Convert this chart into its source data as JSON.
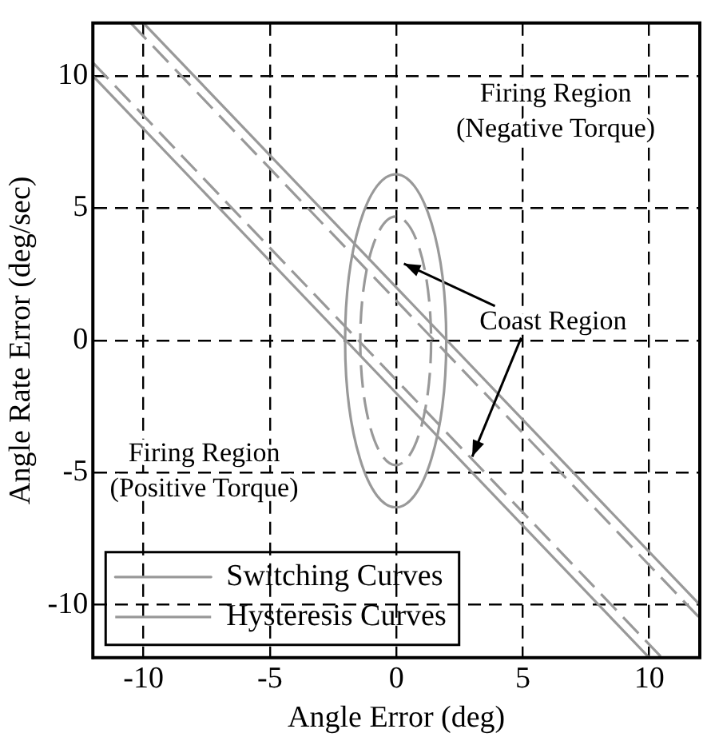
{
  "chart_data": {
    "type": "line",
    "xlabel": "Angle Error (deg)",
    "ylabel": "Angle Rate Error (deg/sec)",
    "xlim": [
      -12,
      12
    ],
    "ylim": [
      -12,
      12
    ],
    "xticks": [
      -10,
      -5,
      0,
      5,
      10
    ],
    "yticks": [
      -10,
      -5,
      0,
      5,
      10
    ],
    "grid": true,
    "legend": "bottom left",
    "marker": "none",
    "series": [
      {
        "name": "Switching Curves",
        "color": "#999999",
        "line_style": "solid",
        "x": [
          -10,
          12
        ],
        "values": [
          12,
          -10
        ]
      },
      {
        "color": "#999999",
        "line_style": "solid",
        "x": [
          -12,
          10
        ],
        "values": [
          10,
          -12
        ]
      },
      {
        "name": "Hysteresis Curves",
        "color": "#999999",
        "line_style": "dashed",
        "x": [
          -10.5,
          12
        ],
        "values": [
          12,
          -10.5
        ]
      },
      {
        "color": "#999999",
        "line_style": "dashed",
        "x": [
          -12,
          10.5
        ],
        "values": [
          10.5,
          -12
        ]
      }
    ],
    "annotations": [
      "Firing Region (Negative Torque)",
      {
        "text": "Coast Region",
        "x": 3,
        "y": -4.4
      },
      "Firing Region (Positive Torque)"
    ]
  }
}
